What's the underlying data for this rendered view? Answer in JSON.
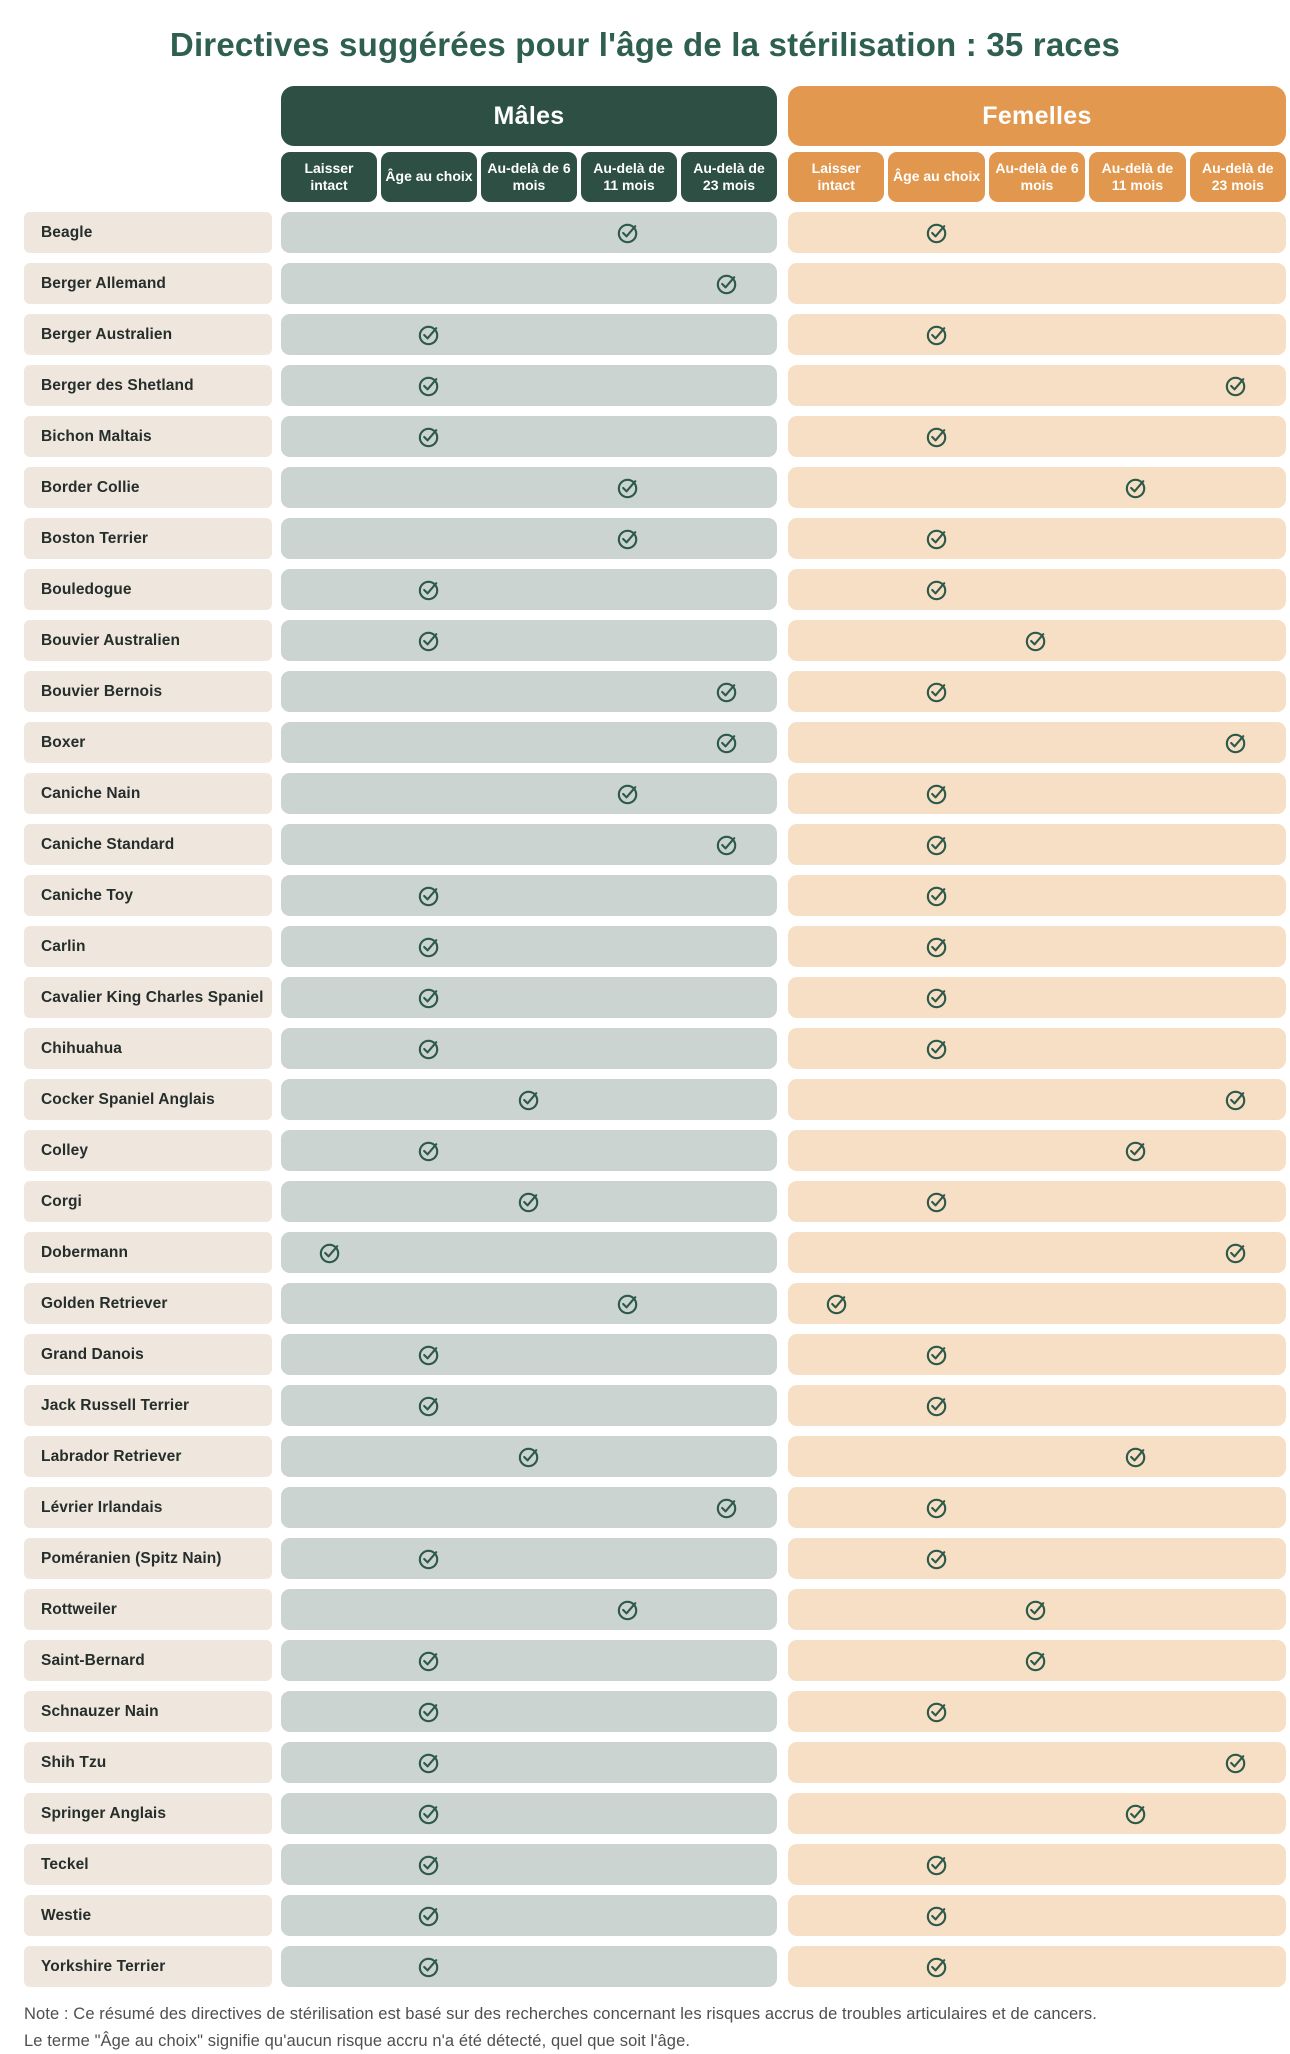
{
  "title": "Directives suggérées pour l'âge de la stérilisation : 35 races",
  "groups": {
    "male_label": "Mâles",
    "female_label": "Femelles"
  },
  "subheaders": [
    "Laisser intact",
    "Âge au choix",
    "Au-delà de 6 mois",
    "Au-delà de 11 mois",
    "Au-delà de 23 mois"
  ],
  "note": {
    "line1": "Note : Ce résumé des directives de stérilisation est basé sur des recherches concernant les risques accrus de troubles articulaires et de cancers.",
    "line2": "Le terme \"Âge au choix\" signifie qu'aucun risque accru n'a été détecté, quel que soit l'âge."
  },
  "colors": {
    "title_green": "#2E5F50",
    "male_header": "#2D4F44",
    "female_header": "#E1974E",
    "male_row_bg": "#CBD4D0",
    "female_row_bg": "#F6DFC4",
    "breed_bg": "#EFE6DE",
    "check_green": "#2D594A",
    "note_gray": "#4F4F4F"
  },
  "icons": {
    "check": "circle-check-icon"
  },
  "chart_data": {
    "type": "table",
    "title": "Directives suggérées pour l'âge de la stérilisation : 35 races",
    "column_groups": [
      "Mâles",
      "Femelles"
    ],
    "columns": [
      "Laisser intact",
      "Âge au choix",
      "Au-delà de 6 mois",
      "Au-delà de 11 mois",
      "Au-delà de 23 mois"
    ],
    "rows": [
      {
        "breed": "Beagle",
        "male": 3,
        "female": 1
      },
      {
        "breed": "Berger Allemand",
        "male": 4,
        "female": null
      },
      {
        "breed": "Berger Australien",
        "male": 1,
        "female": 1
      },
      {
        "breed": "Berger des Shetland",
        "male": 1,
        "female": 4
      },
      {
        "breed": "Bichon Maltais",
        "male": 1,
        "female": 1
      },
      {
        "breed": "Border Collie",
        "male": 3,
        "female": 3
      },
      {
        "breed": "Boston Terrier",
        "male": 3,
        "female": 1
      },
      {
        "breed": "Bouledogue",
        "male": 1,
        "female": 1
      },
      {
        "breed": "Bouvier Australien",
        "male": 1,
        "female": 2
      },
      {
        "breed": "Bouvier Bernois",
        "male": 4,
        "female": 1
      },
      {
        "breed": "Boxer",
        "male": 4,
        "female": 4
      },
      {
        "breed": "Caniche Nain",
        "male": 3,
        "female": 1
      },
      {
        "breed": "Caniche Standard",
        "male": 4,
        "female": 1
      },
      {
        "breed": "Caniche Toy",
        "male": 1,
        "female": 1
      },
      {
        "breed": "Carlin",
        "male": 1,
        "female": 1
      },
      {
        "breed": "Cavalier King Charles Spaniel",
        "male": 1,
        "female": 1
      },
      {
        "breed": "Chihuahua",
        "male": 1,
        "female": 1
      },
      {
        "breed": "Cocker Spaniel Anglais",
        "male": 2,
        "female": 4
      },
      {
        "breed": "Colley",
        "male": 1,
        "female": 3
      },
      {
        "breed": "Corgi",
        "male": 2,
        "female": 1
      },
      {
        "breed": "Dobermann",
        "male": 0,
        "female": 4
      },
      {
        "breed": "Golden Retriever",
        "male": 3,
        "female": 0
      },
      {
        "breed": "Grand Danois",
        "male": 1,
        "female": 1
      },
      {
        "breed": "Jack Russell Terrier",
        "male": 1,
        "female": 1
      },
      {
        "breed": "Labrador Retriever",
        "male": 2,
        "female": 3
      },
      {
        "breed": "Lévrier Irlandais",
        "male": 4,
        "female": 1
      },
      {
        "breed": "Poméranien (Spitz Nain)",
        "male": 1,
        "female": 1
      },
      {
        "breed": "Rottweiler",
        "male": 3,
        "female": 2
      },
      {
        "breed": "Saint-Bernard",
        "male": 1,
        "female": 2
      },
      {
        "breed": "Schnauzer Nain",
        "male": 1,
        "female": 1
      },
      {
        "breed": "Shih Tzu",
        "male": 1,
        "female": 4
      },
      {
        "breed": "Springer Anglais",
        "male": 1,
        "female": 3
      },
      {
        "breed": "Teckel",
        "male": 1,
        "female": 1
      },
      {
        "breed": "Westie",
        "male": 1,
        "female": 1
      },
      {
        "breed": "Yorkshire Terrier",
        "male": 1,
        "female": 1
      }
    ]
  }
}
